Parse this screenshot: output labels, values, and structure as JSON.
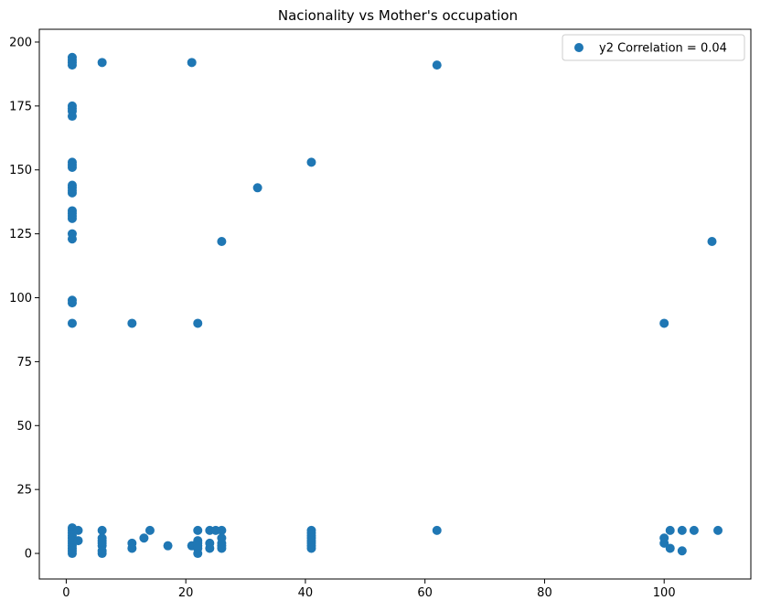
{
  "chart_data": {
    "type": "scatter",
    "title": "Nacionality vs Mother's occupation",
    "xlabel": "",
    "ylabel": "",
    "xlim": [
      -4.5,
      114.5
    ],
    "ylim": [
      -10,
      205
    ],
    "xticks": [
      0,
      20,
      40,
      60,
      80,
      100
    ],
    "yticks": [
      0,
      25,
      50,
      75,
      100,
      125,
      150,
      175,
      200
    ],
    "grid": false,
    "legend": {
      "placement": "top-right"
    },
    "colors": {
      "series": "#1f77b4",
      "axis": "#000000"
    },
    "series": [
      {
        "name": "y2 Correlation = 0.04",
        "points": [
          [
            1,
            194
          ],
          [
            1,
            193
          ],
          [
            1,
            192
          ],
          [
            1,
            191
          ],
          [
            1,
            175
          ],
          [
            1,
            174
          ],
          [
            1,
            173
          ],
          [
            1,
            171
          ],
          [
            1,
            153
          ],
          [
            1,
            152
          ],
          [
            1,
            151
          ],
          [
            1,
            144
          ],
          [
            1,
            143
          ],
          [
            1,
            142
          ],
          [
            1,
            141
          ],
          [
            1,
            134
          ],
          [
            1,
            133
          ],
          [
            1,
            132
          ],
          [
            1,
            131
          ],
          [
            1,
            125
          ],
          [
            1,
            123
          ],
          [
            1,
            99
          ],
          [
            1,
            98
          ],
          [
            1,
            90
          ],
          [
            1,
            10
          ],
          [
            1,
            9
          ],
          [
            1,
            8
          ],
          [
            1,
            7
          ],
          [
            1,
            6
          ],
          [
            1,
            5
          ],
          [
            1,
            4
          ],
          [
            1,
            3
          ],
          [
            1,
            2
          ],
          [
            1,
            1
          ],
          [
            1,
            0
          ],
          [
            2,
            9
          ],
          [
            2,
            5
          ],
          [
            6,
            192
          ],
          [
            6,
            9
          ],
          [
            6,
            6
          ],
          [
            6,
            5
          ],
          [
            6,
            4
          ],
          [
            6,
            3
          ],
          [
            6,
            1
          ],
          [
            6,
            0
          ],
          [
            11,
            90
          ],
          [
            11,
            4
          ],
          [
            11,
            2
          ],
          [
            13,
            6
          ],
          [
            14,
            9
          ],
          [
            17,
            3
          ],
          [
            21,
            192
          ],
          [
            21,
            3
          ],
          [
            22,
            90
          ],
          [
            22,
            9
          ],
          [
            22,
            5
          ],
          [
            22,
            4
          ],
          [
            22,
            3
          ],
          [
            22,
            2
          ],
          [
            22,
            0
          ],
          [
            24,
            9
          ],
          [
            24,
            4
          ],
          [
            24,
            2
          ],
          [
            25,
            9
          ],
          [
            26,
            122
          ],
          [
            26,
            9
          ],
          [
            26,
            6
          ],
          [
            26,
            4
          ],
          [
            26,
            3
          ],
          [
            26,
            2
          ],
          [
            32,
            143
          ],
          [
            41,
            153
          ],
          [
            41,
            9
          ],
          [
            41,
            8
          ],
          [
            41,
            7
          ],
          [
            41,
            6
          ],
          [
            41,
            5
          ],
          [
            41,
            4
          ],
          [
            41,
            3
          ],
          [
            41,
            2
          ],
          [
            62,
            191
          ],
          [
            62,
            9
          ],
          [
            100,
            90
          ],
          [
            100,
            6
          ],
          [
            100,
            4
          ],
          [
            101,
            9
          ],
          [
            101,
            2
          ],
          [
            103,
            9
          ],
          [
            103,
            1
          ],
          [
            105,
            9
          ],
          [
            108,
            122
          ],
          [
            109,
            9
          ]
        ]
      }
    ]
  }
}
